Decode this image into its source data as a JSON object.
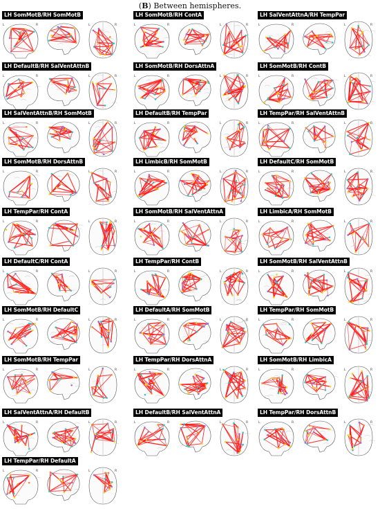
{
  "figure": {
    "title_letter": "B",
    "title_text": "Between hemispheres."
  },
  "panels": [
    {
      "label": "LH SomMotB/RH SomMotB"
    },
    {
      "label": "LH SomMotB/RH ContA"
    },
    {
      "label": "LH SalVentAttnA/RH TempPar"
    },
    {
      "label": "LH DefaultB/RH SalVentAttnB"
    },
    {
      "label": "LH SomMotB/RH DorsAttnA"
    },
    {
      "label": "LH SomMotB/RH ContB"
    },
    {
      "label": "LH SalVentAttnB/RH SomMotB"
    },
    {
      "label": "LH DefaultB/RH TempPar"
    },
    {
      "label": "LH TempPar/RH SalVentAttnB"
    },
    {
      "label": "LH SomMotB/RH DorsAttnB"
    },
    {
      "label": "LH LimbicB/RH SomMotB"
    },
    {
      "label": "LH DefaultC/RH SomMotB"
    },
    {
      "label": "LH TempPar/RH ContA"
    },
    {
      "label": "LH SomMotB/RH SalVentAttnA"
    },
    {
      "label": "LH LimbicA/RH SomMotB"
    },
    {
      "label": "LH DefaultC/RH ContA"
    },
    {
      "label": "LH TempPar/RH ContB"
    },
    {
      "label": "LH SomMotB/RH SalVentAttnB"
    },
    {
      "label": "LH SomMotB/RH DefaultC"
    },
    {
      "label": "LH DefaultA/RH SomMotB"
    },
    {
      "label": "LH TempPar/RH SomMotB"
    },
    {
      "label": "LH SomMotB/RH TempPar"
    },
    {
      "label": "LH TempPar/RH DorsAttnA"
    },
    {
      "label": "LH SomMotB/RH LimbicA"
    },
    {
      "label": "LH SalVentAttnA/RH DefaultB"
    },
    {
      "label": "LH DefaultB/RH SalVentAttnA"
    },
    {
      "label": "LH TempPar/RH DorsAttnB"
    },
    {
      "label": "LH TempPar/RH DefaultA"
    }
  ],
  "view_letters": {
    "coronal": [
      "L",
      "R"
    ],
    "axial": [
      "L",
      "R"
    ]
  },
  "colors": {
    "edge": "#ff1a1a",
    "node_cyan": "#2ec4c8",
    "node_yellow": "#f2d21a",
    "node_orange": "#f08a2a",
    "node_violet": "#9b6fd6",
    "outline": "#555555"
  }
}
